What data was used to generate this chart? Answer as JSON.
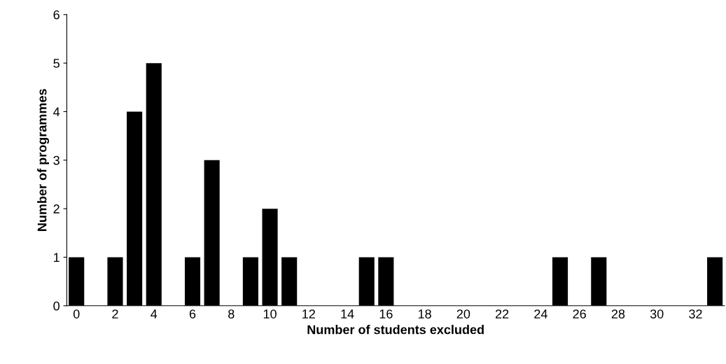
{
  "chart_data": {
    "type": "bar",
    "xlabel": "Number of students excluded",
    "ylabel": "Number of programmes",
    "categories": [
      "0",
      null,
      "2",
      null,
      "4",
      null,
      "6",
      null,
      "8",
      null,
      "10",
      null,
      "12",
      null,
      "14",
      null,
      "16",
      null,
      "18",
      null,
      "20",
      null,
      "22",
      null,
      "24",
      null,
      "26",
      null,
      "28",
      null,
      "30",
      null,
      "32",
      null
    ],
    "values": [
      1,
      0,
      1,
      4,
      5,
      0,
      1,
      3,
      0,
      1,
      2,
      1,
      0,
      0,
      0,
      1,
      1,
      0,
      0,
      0,
      0,
      0,
      0,
      0,
      0,
      1,
      0,
      1,
      0,
      0,
      0,
      0,
      0,
      1
    ],
    "color": "#000000",
    "ylim": [
      0,
      6
    ],
    "yticks": [
      0,
      1,
      2,
      3,
      4,
      5,
      6
    ],
    "grid": false,
    "legend": false
  }
}
